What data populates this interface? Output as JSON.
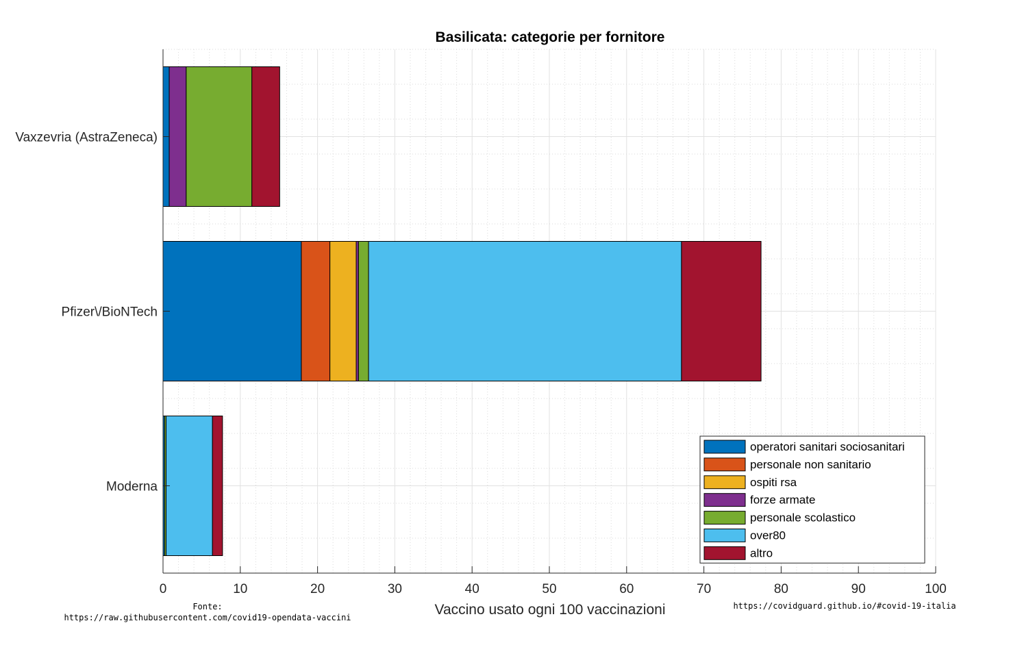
{
  "chart_data": {
    "type": "bar",
    "orientation": "horizontal",
    "stacked": true,
    "title": "Basilicata: categorie per fornitore",
    "xlabel": "Vaccino usato ogni 100 vaccinazioni",
    "ylabel": "",
    "xlim": [
      0,
      100
    ],
    "xticks": [
      0,
      10,
      20,
      30,
      40,
      50,
      60,
      70,
      80,
      90,
      100
    ],
    "grid": true,
    "minor_grid": true,
    "legend_position": "bottom-right",
    "categories": [
      "Vaxzevria (AstraZeneca)",
      "Pfizer\\/BioNTech",
      "Moderna"
    ],
    "series": [
      {
        "name": "operatori sanitari sociosanitari",
        "color": "#0072BD",
        "values": [
          0.8,
          17.9,
          0.2
        ]
      },
      {
        "name": "personale non sanitario",
        "color": "#D95319",
        "values": [
          0.0,
          3.7,
          0.0
        ]
      },
      {
        "name": "ospiti rsa",
        "color": "#EDB120",
        "values": [
          0.0,
          3.4,
          0.0
        ]
      },
      {
        "name": "forze armate",
        "color": "#7E2F8E",
        "values": [
          2.2,
          0.3,
          0.0
        ]
      },
      {
        "name": "personale scolastico",
        "color": "#77AC30",
        "values": [
          8.5,
          1.3,
          0.2
        ]
      },
      {
        "name": "over80",
        "color": "#4DBEEE",
        "values": [
          0.0,
          40.5,
          6.0
        ]
      },
      {
        "name": "altro",
        "color": "#A2142F",
        "values": [
          3.6,
          10.3,
          1.3
        ]
      }
    ]
  },
  "footer": {
    "source_label": "Fonte:",
    "source_url": "https://raw.githubusercontent.com/covid19-opendata-vaccini",
    "site_url": "https://covidguard.github.io/#covid-19-italia"
  }
}
